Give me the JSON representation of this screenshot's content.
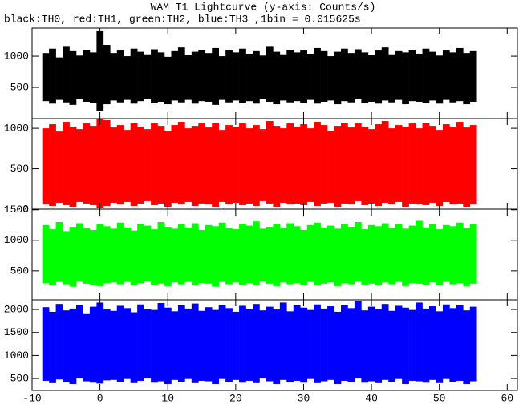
{
  "chart_data": [
    {
      "type": "range",
      "title": "WAM T1 Lightcurve (y-axis: Counts/s)",
      "subtitle": "black:TH0, red:TH1, green:TH2, blue:TH3 ,1bin = 0.015625s",
      "color": "#000000",
      "xlim": [
        -10,
        61.5
      ],
      "ylim": [
        0,
        1450
      ],
      "yticks": [
        500,
        1000
      ],
      "x": [
        -8,
        -7,
        -6,
        -5,
        -4,
        -3,
        -2,
        -1,
        0,
        1,
        2,
        3,
        4,
        5,
        6,
        7,
        8,
        9,
        10,
        11,
        12,
        13,
        14,
        15,
        16,
        17,
        18,
        19,
        20,
        21,
        22,
        23,
        24,
        25,
        26,
        27,
        28,
        29,
        30,
        31,
        32,
        33,
        34,
        35,
        36,
        37,
        38,
        39,
        40,
        41,
        42,
        43,
        44,
        45,
        46,
        47,
        48,
        49,
        50,
        51,
        52,
        53,
        54,
        55
      ],
      "high": [
        1050,
        1120,
        980,
        1150,
        1080,
        1010,
        1100,
        1060,
        1400,
        1180,
        1050,
        1090,
        1000,
        1120,
        1070,
        1030,
        1110,
        1060,
        990,
        1080,
        1140,
        1020,
        1070,
        1100,
        1050,
        1130,
        1000,
        1090,
        1060,
        1120,
        1040,
        1080,
        1010,
        1150,
        1070,
        1030,
        1100,
        1060,
        1090,
        1040,
        1130,
        1080,
        1000,
        1070,
        1120,
        1050,
        1110,
        1060,
        1020,
        1090,
        1140,
        1030,
        1080,
        1060,
        1100,
        1040,
        1120,
        1070,
        1010,
        1090,
        1060,
        1130,
        1050,
        1080
      ],
      "low": [
        280,
        240,
        300,
        260,
        220,
        310,
        270,
        250,
        120,
        230,
        290,
        260,
        300,
        240,
        280,
        310,
        250,
        270,
        230,
        290,
        260,
        300,
        240,
        280,
        270,
        220,
        300,
        260,
        290,
        250,
        280,
        240,
        310,
        270,
        230,
        290,
        260,
        280,
        250,
        300,
        240,
        270,
        290,
        230,
        280,
        260,
        310,
        250,
        270,
        240,
        290,
        260,
        300,
        230,
        280,
        270,
        250,
        290,
        240,
        300,
        260,
        280,
        230,
        270
      ]
    },
    {
      "type": "range",
      "color": "#ff0000",
      "xlim": [
        -10,
        61.5
      ],
      "ylim": [
        0,
        1120
      ],
      "yticks": [
        0,
        500,
        1000
      ],
      "x": [
        -8,
        -7,
        -6,
        -5,
        -4,
        -3,
        -2,
        -1,
        0,
        1,
        2,
        3,
        4,
        5,
        6,
        7,
        8,
        9,
        10,
        11,
        12,
        13,
        14,
        15,
        16,
        17,
        18,
        19,
        20,
        21,
        22,
        23,
        24,
        25,
        26,
        27,
        28,
        29,
        30,
        31,
        32,
        33,
        34,
        35,
        36,
        37,
        38,
        39,
        40,
        41,
        42,
        43,
        44,
        45,
        46,
        47,
        48,
        49,
        50,
        51,
        52,
        53,
        54,
        55
      ],
      "high": [
        1000,
        1050,
        960,
        1080,
        1020,
        990,
        1060,
        1030,
        1120,
        1100,
        1010,
        1040,
        980,
        1070,
        1020,
        990,
        1060,
        1030,
        970,
        1040,
        1080,
        1000,
        1030,
        1060,
        1010,
        1070,
        980,
        1040,
        1020,
        1070,
        1000,
        1040,
        990,
        1090,
        1030,
        1000,
        1060,
        1020,
        1050,
        1000,
        1080,
        1040,
        970,
        1030,
        1070,
        1010,
        1060,
        1020,
        990,
        1050,
        1090,
        1000,
        1040,
        1020,
        1060,
        1000,
        1070,
        1030,
        980,
        1050,
        1020,
        1080,
        1010,
        1040
      ],
      "low": [
        60,
        40,
        80,
        50,
        30,
        90,
        70,
        50,
        20,
        40,
        80,
        60,
        90,
        40,
        70,
        100,
        50,
        70,
        30,
        80,
        60,
        90,
        40,
        70,
        60,
        30,
        90,
        60,
        80,
        50,
        70,
        40,
        100,
        70,
        30,
        80,
        60,
        70,
        50,
        90,
        40,
        70,
        80,
        30,
        70,
        60,
        100,
        50,
        70,
        40,
        80,
        60,
        90,
        30,
        70,
        60,
        50,
        80,
        40,
        90,
        60,
        70,
        30,
        60
      ]
    },
    {
      "type": "range",
      "color": "#00ff00",
      "xlim": [
        -10,
        61.5
      ],
      "ylim": [
        25,
        1510
      ],
      "yticks": [
        500,
        1000,
        1500
      ],
      "x": [
        -8,
        -7,
        -6,
        -5,
        -4,
        -3,
        -2,
        -1,
        0,
        1,
        2,
        3,
        4,
        5,
        6,
        7,
        8,
        9,
        10,
        11,
        12,
        13,
        14,
        15,
        16,
        17,
        18,
        19,
        20,
        21,
        22,
        23,
        24,
        25,
        26,
        27,
        28,
        29,
        30,
        31,
        32,
        33,
        34,
        35,
        36,
        37,
        38,
        39,
        40,
        41,
        42,
        43,
        44,
        45,
        46,
        47,
        48,
        49,
        50,
        51,
        52,
        53,
        54,
        55
      ],
      "high": [
        1250,
        1180,
        1300,
        1150,
        1220,
        1280,
        1200,
        1170,
        1260,
        1230,
        1190,
        1290,
        1210,
        1160,
        1270,
        1240,
        1180,
        1300,
        1220,
        1190,
        1260,
        1210,
        1280,
        1170,
        1250,
        1230,
        1290,
        1200,
        1180,
        1270,
        1240,
        1310,
        1190,
        1220,
        1260,
        1200,
        1280,
        1230,
        1170,
        1250,
        1290,
        1210,
        1240,
        1190,
        1270,
        1220,
        1300,
        1180,
        1250,
        1230,
        1280,
        1200,
        1260,
        1190,
        1240,
        1320,
        1210,
        1270,
        1180,
        1250,
        1230,
        1290,
        1200,
        1260
      ],
      "low": [
        300,
        260,
        320,
        280,
        240,
        330,
        290,
        270,
        250,
        300,
        310,
        280,
        320,
        260,
        300,
        330,
        270,
        290,
        250,
        310,
        280,
        320,
        260,
        300,
        290,
        240,
        320,
        280,
        310,
        270,
        300,
        260,
        330,
        290,
        250,
        310,
        280,
        300,
        270,
        320,
        260,
        290,
        310,
        250,
        300,
        280,
        330,
        270,
        290,
        260,
        310,
        280,
        320,
        250,
        300,
        290,
        270,
        310,
        260,
        320,
        280,
        300,
        250,
        290
      ]
    },
    {
      "type": "range",
      "color": "#0000ff",
      "xlim": [
        -10,
        61.5
      ],
      "ylim": [
        240,
        2210
      ],
      "yticks": [
        500,
        1000,
        1500,
        2000
      ],
      "xticks": [
        -10,
        0,
        10,
        20,
        30,
        40,
        50,
        60
      ],
      "x": [
        -8,
        -7,
        -6,
        -5,
        -4,
        -3,
        -2,
        -1,
        0,
        1,
        2,
        3,
        4,
        5,
        6,
        7,
        8,
        9,
        10,
        11,
        12,
        13,
        14,
        15,
        16,
        17,
        18,
        19,
        20,
        21,
        22,
        23,
        24,
        25,
        26,
        27,
        28,
        29,
        30,
        31,
        32,
        33,
        34,
        35,
        36,
        37,
        38,
        39,
        40,
        41,
        42,
        43,
        44,
        45,
        46,
        47,
        48,
        49,
        50,
        51,
        52,
        53,
        54,
        55
      ],
      "high": [
        2050,
        1950,
        2120,
        1980,
        2020,
        2100,
        1900,
        2060,
        2150,
        2000,
        1970,
        2080,
        2030,
        1940,
        2110,
        2010,
        1990,
        2140,
        2040,
        1960,
        2090,
        2020,
        2130,
        1970,
        2050,
        1990,
        2100,
        2030,
        1950,
        2080,
        2010,
        2120,
        1980,
        2060,
        2000,
        2150,
        1960,
        2090,
        2040,
        1990,
        2110,
        2020,
        2070,
        1950,
        2100,
        2030,
        2180,
        1980,
        2060,
        2010,
        2120,
        1970,
        2080,
        2040,
        1990,
        2150,
        2020,
        2070,
        1960,
        2110,
        2030,
        2100,
        1980,
        2060
      ],
      "low": [
        450,
        400,
        480,
        420,
        380,
        500,
        440,
        410,
        390,
        460,
        470,
        430,
        490,
        400,
        450,
        500,
        410,
        440,
        380,
        470,
        430,
        490,
        400,
        450,
        440,
        380,
        490,
        420,
        470,
        410,
        450,
        400,
        500,
        440,
        380,
        470,
        420,
        450,
        410,
        490,
        400,
        440,
        470,
        380,
        450,
        420,
        500,
        410,
        440,
        400,
        470,
        430,
        490,
        380,
        450,
        440,
        410,
        470,
        400,
        490,
        430,
        450,
        380,
        440
      ]
    }
  ]
}
